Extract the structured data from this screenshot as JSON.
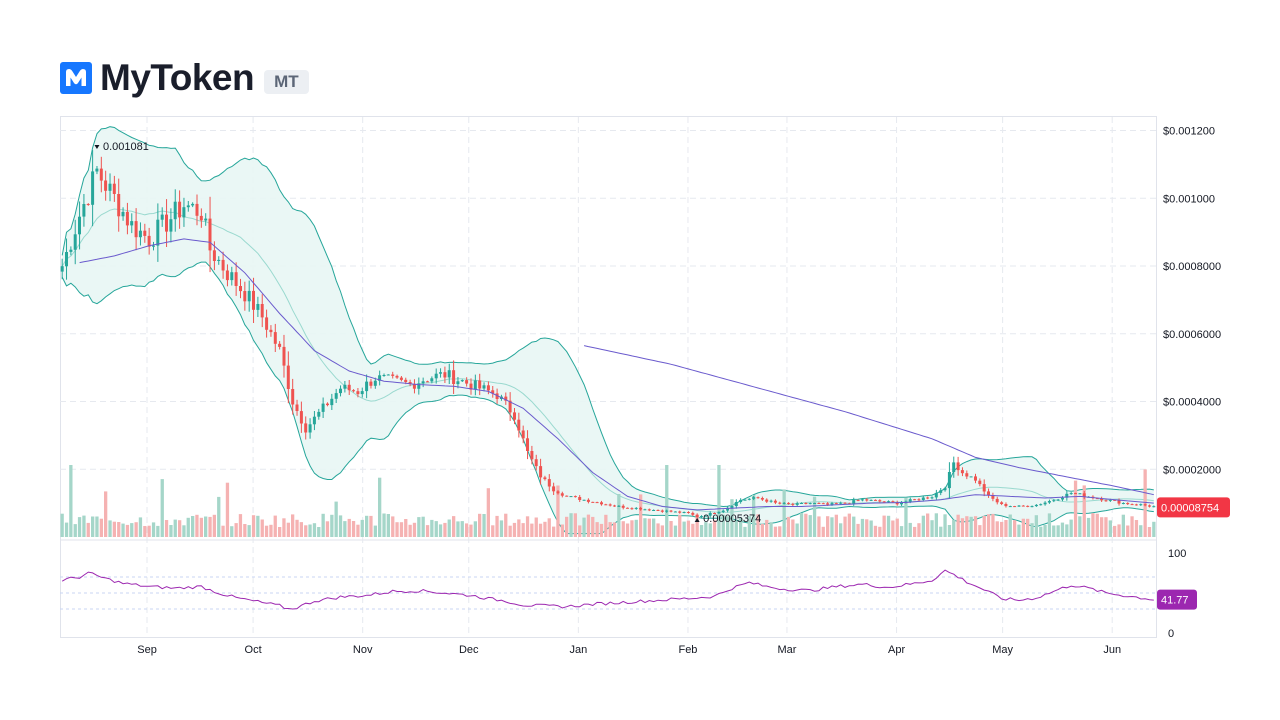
{
  "header": {
    "token_name": "MyToken",
    "ticker": "MT"
  },
  "colors": {
    "up": "#26a69a",
    "down": "#ef5350",
    "band_fill": "#e8f6f4",
    "band_line": "#26a69a",
    "ma_line": "#6a5acd",
    "rsi_line": "#9c27b0",
    "price_tag": "#f23645",
    "rsi_tag": "#9c27b0",
    "logo": "#1677ff"
  },
  "chart_data": {
    "type": "candlestick",
    "price_axis": {
      "ticks": [
        "$0.001200",
        "$0.001000",
        "$0.0008000",
        "$0.0006000",
        "$0.0004000",
        "$0.0002000"
      ],
      "tick_values": [
        0.0012,
        0.001,
        0.0008,
        0.0006,
        0.0004,
        0.0002
      ],
      "range": [
        0.0,
        0.0012
      ],
      "grid": true
    },
    "time_axis": {
      "labels": [
        "Sep",
        "Oct",
        "Nov",
        "Dec",
        "Jan",
        "Feb",
        "Mar",
        "Apr",
        "May",
        "Jun"
      ]
    },
    "last_price": "0.00008754",
    "last_price_value": 8.754e-05,
    "high_marker": {
      "text": "0.001081",
      "value": 0.001081
    },
    "low_marker": {
      "text": "0.00005374",
      "value": 5.374e-05
    },
    "indicators": [
      "Bollinger Bands",
      "Moving Average",
      "Volume",
      "RSI"
    ],
    "price_path": [
      [
        0,
        0.0008
      ],
      [
        4,
        0.00095
      ],
      [
        8,
        0.00108
      ],
      [
        12,
        0.001
      ],
      [
        16,
        0.00092
      ],
      [
        20,
        0.00088
      ],
      [
        24,
        0.00093
      ],
      [
        28,
        0.00098
      ],
      [
        32,
        0.00096
      ],
      [
        34,
        0.00085
      ],
      [
        38,
        0.00078
      ],
      [
        42,
        0.00072
      ],
      [
        46,
        0.00065
      ],
      [
        50,
        0.00055
      ],
      [
        53,
        0.0004
      ],
      [
        56,
        0.00032
      ],
      [
        60,
        0.00038
      ],
      [
        64,
        0.00044
      ],
      [
        68,
        0.00043
      ],
      [
        72,
        0.00047
      ],
      [
        76,
        0.00046
      ],
      [
        80,
        0.00045
      ],
      [
        84,
        0.00047
      ],
      [
        88,
        0.00048
      ],
      [
        92,
        0.00046
      ],
      [
        96,
        0.00044
      ],
      [
        100,
        0.00042
      ],
      [
        104,
        0.00036
      ],
      [
        107,
        0.00025
      ],
      [
        110,
        0.00018
      ],
      [
        113,
        0.00014
      ],
      [
        116,
        0.00012
      ],
      [
        120,
        0.00011
      ],
      [
        124,
        0.0001
      ],
      [
        128,
        9e-05
      ],
      [
        132,
        8.5e-05
      ],
      [
        136,
        8e-05
      ],
      [
        140,
        7.5e-05
      ],
      [
        144,
        7e-05
      ],
      [
        146,
        6e-05
      ],
      [
        148,
        6.5e-05
      ],
      [
        152,
        8e-05
      ],
      [
        156,
        0.00011
      ],
      [
        160,
        0.000115
      ],
      [
        164,
        0.0001
      ],
      [
        168,
        9.5e-05
      ],
      [
        172,
        0.0001
      ],
      [
        176,
        9.5e-05
      ],
      [
        180,
        0.0001
      ],
      [
        184,
        0.00011
      ],
      [
        188,
        0.000105
      ],
      [
        192,
        0.0001
      ],
      [
        196,
        0.00011
      ],
      [
        200,
        0.00012
      ],
      [
        203,
        0.00015
      ],
      [
        205,
        0.00022
      ],
      [
        207,
        0.00019
      ],
      [
        210,
        0.00017
      ],
      [
        213,
        0.00012
      ],
      [
        216,
        9.5e-05
      ],
      [
        220,
        9e-05
      ],
      [
        224,
        9.5e-05
      ],
      [
        228,
        0.00011
      ],
      [
        232,
        0.00013
      ],
      [
        236,
        0.00012
      ],
      [
        240,
        0.00011
      ],
      [
        244,
        0.0001
      ],
      [
        248,
        9.5e-05
      ],
      [
        251,
        9e-05
      ]
    ],
    "ma_path": [
      [
        4,
        0.00081
      ],
      [
        12,
        0.00083
      ],
      [
        20,
        0.00086
      ],
      [
        28,
        0.00088
      ],
      [
        34,
        0.00087
      ],
      [
        42,
        0.00078
      ],
      [
        50,
        0.00066
      ],
      [
        58,
        0.00055
      ],
      [
        66,
        0.00049
      ],
      [
        74,
        0.00046
      ],
      [
        82,
        0.00045
      ],
      [
        90,
        0.000445
      ],
      [
        98,
        0.00043
      ],
      [
        106,
        0.00038
      ],
      [
        114,
        0.00029
      ],
      [
        122,
        0.00019
      ],
      [
        130,
        0.00012
      ],
      [
        138,
        9e-05
      ],
      [
        146,
        8e-05
      ],
      [
        154,
        8.5e-05
      ],
      [
        162,
        9e-05
      ],
      [
        170,
        9e-05
      ],
      [
        178,
        9.5e-05
      ],
      [
        186,
        0.0001
      ],
      [
        194,
        0.000102
      ],
      [
        202,
        0.00011
      ],
      [
        210,
        0.000125
      ],
      [
        218,
        0.00012
      ],
      [
        226,
        0.000115
      ],
      [
        234,
        0.00012
      ],
      [
        242,
        0.00011
      ],
      [
        251,
        0.0001
      ]
    ],
    "long_ma_path": [
      [
        120,
        0.000565
      ],
      [
        140,
        0.00051
      ],
      [
        160,
        0.00044
      ],
      [
        180,
        0.00037
      ],
      [
        200,
        0.00029
      ],
      [
        210,
        0.000235
      ],
      [
        220,
        0.000205
      ],
      [
        232,
        0.000175
      ],
      [
        242,
        0.00015
      ],
      [
        251,
        0.000125
      ]
    ],
    "rsi_axis": {
      "ticks": [
        "100",
        "0"
      ],
      "tick_values": [
        100,
        0
      ],
      "last": "41.77",
      "last_value": 41.77
    },
    "rsi_path": [
      [
        0,
        66
      ],
      [
        4,
        70
      ],
      [
        6,
        75
      ],
      [
        10,
        68
      ],
      [
        14,
        62
      ],
      [
        20,
        58
      ],
      [
        26,
        56
      ],
      [
        32,
        58
      ],
      [
        36,
        50
      ],
      [
        40,
        44
      ],
      [
        46,
        38
      ],
      [
        50,
        34
      ],
      [
        52,
        30
      ],
      [
        54,
        32
      ],
      [
        58,
        40
      ],
      [
        64,
        45
      ],
      [
        70,
        47
      ],
      [
        76,
        52
      ],
      [
        82,
        53
      ],
      [
        88,
        50
      ],
      [
        94,
        47
      ],
      [
        98,
        43
      ],
      [
        102,
        40
      ],
      [
        106,
        35
      ],
      [
        110,
        34
      ],
      [
        116,
        33
      ],
      [
        122,
        36
      ],
      [
        128,
        38
      ],
      [
        134,
        40
      ],
      [
        140,
        42
      ],
      [
        146,
        44
      ],
      [
        150,
        46
      ],
      [
        154,
        56
      ],
      [
        158,
        63
      ],
      [
        162,
        58
      ],
      [
        166,
        55
      ],
      [
        172,
        53
      ],
      [
        178,
        58
      ],
      [
        184,
        61
      ],
      [
        190,
        57
      ],
      [
        196,
        62
      ],
      [
        200,
        66
      ],
      [
        203,
        78
      ],
      [
        205,
        73
      ],
      [
        208,
        64
      ],
      [
        212,
        54
      ],
      [
        216,
        43
      ],
      [
        220,
        41
      ],
      [
        224,
        44
      ],
      [
        228,
        52
      ],
      [
        232,
        60
      ],
      [
        236,
        56
      ],
      [
        240,
        50
      ],
      [
        244,
        47
      ],
      [
        248,
        44
      ],
      [
        251,
        41.77
      ]
    ],
    "rsi_guides": [
      70,
      50,
      30
    ]
  }
}
